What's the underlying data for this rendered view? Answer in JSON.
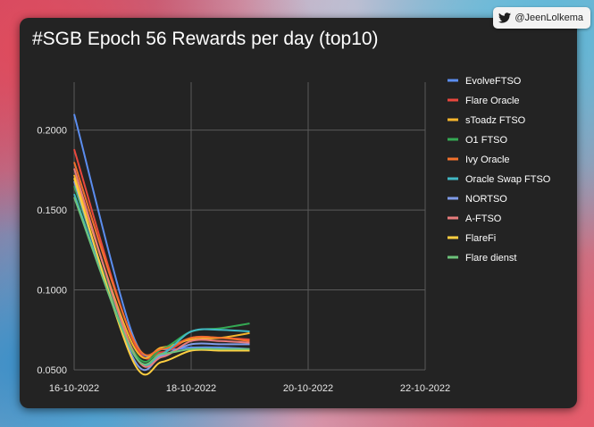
{
  "badge": {
    "handle": "@JeenLolkema",
    "icon": "twitter-bird-icon"
  },
  "chart_data": {
    "type": "line",
    "title": "#SGB Epoch 56 Rewards per day (top10)",
    "x_ticks": [
      "16-10-2022",
      "18-10-2022",
      "20-10-2022",
      "22-10-2022"
    ],
    "y_ticks": [
      "0.0500",
      "0.1000",
      "0.1500",
      "0.2000"
    ],
    "xlim": [
      0,
      6
    ],
    "ylim": [
      0.05,
      0.23
    ],
    "grid": true,
    "legend_position": "right",
    "x": [
      0,
      1,
      1.5,
      2,
      2.5,
      3
    ],
    "series": [
      {
        "name": "EvolveFTSO",
        "color": "#5b8def",
        "values": [
          0.21,
          0.072,
          0.063,
          0.064,
          0.064,
          0.063
        ]
      },
      {
        "name": "Flare Oracle",
        "color": "#e8473d",
        "values": [
          0.188,
          0.069,
          0.061,
          0.07,
          0.07,
          0.069
        ]
      },
      {
        "name": "sToadz FTSO",
        "color": "#f6b42c",
        "values": [
          0.172,
          0.066,
          0.064,
          0.069,
          0.07,
          0.073
        ]
      },
      {
        "name": "O1 FTSO",
        "color": "#34a853",
        "values": [
          0.165,
          0.063,
          0.063,
          0.074,
          0.076,
          0.079
        ]
      },
      {
        "name": "Ivy Oracle",
        "color": "#f2712c",
        "values": [
          0.18,
          0.07,
          0.063,
          0.07,
          0.07,
          0.068
        ]
      },
      {
        "name": "Oracle Swap FTSO",
        "color": "#41b8c4",
        "values": [
          0.16,
          0.061,
          0.06,
          0.074,
          0.075,
          0.074
        ]
      },
      {
        "name": "NORTSO",
        "color": "#7f9be8",
        "values": [
          0.168,
          0.058,
          0.059,
          0.066,
          0.066,
          0.066
        ]
      },
      {
        "name": "A-FTSO",
        "color": "#e87c7c",
        "values": [
          0.176,
          0.062,
          0.058,
          0.068,
          0.068,
          0.067
        ]
      },
      {
        "name": "FlareFi",
        "color": "#ffcf40",
        "values": [
          0.17,
          0.056,
          0.055,
          0.062,
          0.062,
          0.062
        ]
      },
      {
        "name": "Flare dienst",
        "color": "#6cc27a",
        "values": [
          0.158,
          0.061,
          0.06,
          0.063,
          0.063,
          0.063
        ]
      }
    ]
  }
}
